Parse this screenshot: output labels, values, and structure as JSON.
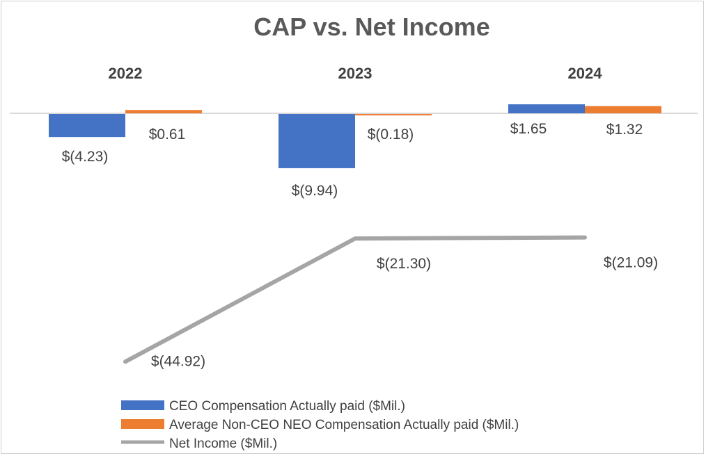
{
  "chart_data": {
    "type": "bar+line",
    "title": "CAP vs. Net Income",
    "categories": [
      "2022",
      "2023",
      "2024"
    ],
    "series": [
      {
        "name": "CEO Compensation Actually paid ($Mil.)",
        "type": "bar",
        "color": "#4472C4",
        "values": [
          -4.23,
          -9.94,
          1.65
        ],
        "labels": [
          "$(4.23)",
          "$(9.94)",
          "$1.65"
        ]
      },
      {
        "name": "Average Non-CEO NEO Compensation Actually paid ($Mil.)",
        "type": "bar",
        "color": "#ED7D31",
        "values": [
          0.61,
          -0.18,
          1.32
        ],
        "labels": [
          "$0.61",
          "$(0.18)",
          "$1.32"
        ]
      },
      {
        "name": "Net Income ($Mil.)",
        "type": "line",
        "color": "#A5A5A5",
        "values": [
          -44.92,
          -21.3,
          -21.09
        ],
        "labels": [
          "$(44.92)",
          "$(21.30)",
          "$(21.09)"
        ]
      }
    ],
    "axis_color": "#D9D9D9",
    "legend_position": "bottom-left"
  }
}
